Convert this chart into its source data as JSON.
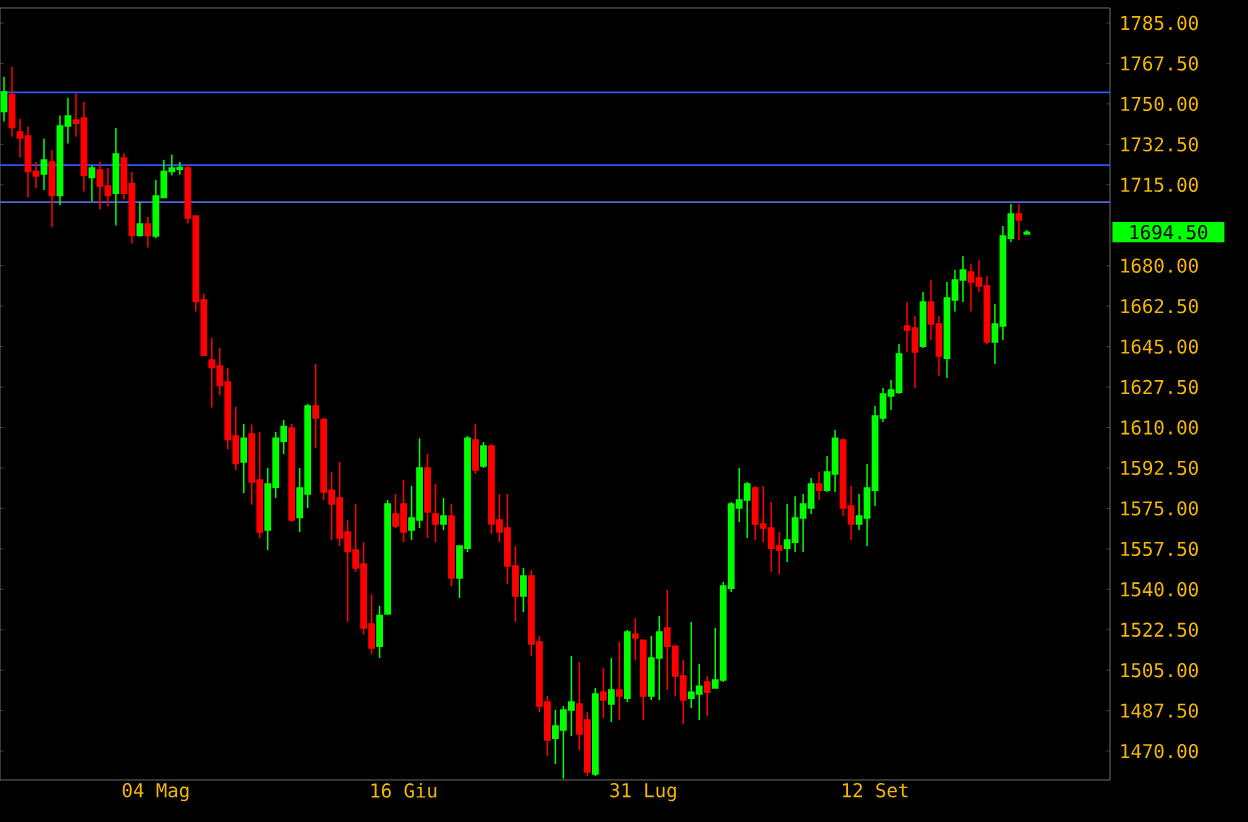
{
  "chart_data": {
    "type": "candlestick",
    "categories": [
      null,
      null,
      null,
      null,
      null,
      null,
      null,
      null,
      null,
      null,
      null,
      null,
      null,
      null,
      null,
      null,
      null,
      null,
      null,
      "04 Mag",
      null,
      null,
      null,
      null,
      null,
      null,
      null,
      null,
      null,
      null,
      null,
      null,
      null,
      null,
      null,
      null,
      null,
      null,
      null,
      null,
      null,
      null,
      null,
      null,
      null,
      null,
      null,
      null,
      null,
      null,
      "16 Giu",
      null,
      null,
      null,
      null,
      null,
      null,
      null,
      null,
      null,
      null,
      null,
      null,
      null,
      null,
      null,
      null,
      null,
      null,
      null,
      null,
      null,
      null,
      null,
      null,
      null,
      null,
      null,
      null,
      null,
      "31 Lug",
      null,
      null,
      null,
      null,
      null,
      null,
      null,
      null,
      null,
      null,
      null,
      null,
      null,
      null,
      null,
      null,
      null,
      null,
      null,
      null,
      null,
      null,
      null,
      null,
      null,
      null,
      null,
      null,
      "12 Set",
      null,
      null,
      null,
      null,
      null,
      null,
      null,
      null,
      null,
      null,
      null,
      null,
      null,
      null,
      null,
      null,
      null,
      null,
      null
    ],
    "ohlc": [
      [
        1746.7,
        1761.8,
        1742.4,
        1755.1
      ],
      [
        1754.0,
        1766.1,
        1735.8,
        1739.8
      ],
      [
        1737.8,
        1743.6,
        1726.8,
        1735.2
      ],
      [
        1736.1,
        1740.2,
        1709.5,
        1720.8
      ],
      [
        1720.8,
        1724.9,
        1713.6,
        1718.8
      ],
      [
        1719.7,
        1735.0,
        1712.7,
        1725.7
      ],
      [
        1724.9,
        1730.1,
        1696.6,
        1710.4
      ],
      [
        1710.4,
        1745.0,
        1706.1,
        1740.4
      ],
      [
        1740.4,
        1752.6,
        1732.9,
        1744.8
      ],
      [
        1743.0,
        1754.5,
        1735.8,
        1741.6
      ],
      [
        1743.9,
        1750.8,
        1712.1,
        1719.1
      ],
      [
        1718.2,
        1723.4,
        1707.8,
        1722.3
      ],
      [
        1721.4,
        1724.9,
        1704.3,
        1714.5
      ],
      [
        1714.5,
        1722.3,
        1705.6,
        1710.4
      ],
      [
        1711.3,
        1739.6,
        1697.4,
        1728.3
      ],
      [
        1726.6,
        1728.6,
        1708.7,
        1711.3
      ],
      [
        1715.6,
        1720.5,
        1689.6,
        1693.1
      ],
      [
        1693.1,
        1707.6,
        1692.6,
        1698.0
      ],
      [
        1698.0,
        1701.2,
        1687.9,
        1693.1
      ],
      [
        1692.8,
        1717.1,
        1691.9,
        1710.2
      ],
      [
        1709.5,
        1725.7,
        1709.3,
        1720.8
      ],
      [
        1720.8,
        1728.1,
        1719.1,
        1722.3
      ],
      [
        1721.7,
        1724.9,
        1719.4,
        1722.5
      ],
      [
        1722.3,
        1723.7,
        1698.3,
        1700.6
      ],
      [
        1701.5,
        1701.5,
        1660.2,
        1664.5
      ],
      [
        1665.2,
        1668.0,
        1641.2,
        1641.2
      ],
      [
        1639.2,
        1648.7,
        1618.7,
        1636.0
      ],
      [
        1636.6,
        1644.4,
        1623.9,
        1628.2
      ],
      [
        1629.7,
        1635.7,
        1600.5,
        1604.8
      ],
      [
        1606.3,
        1619.0,
        1591.6,
        1594.5
      ],
      [
        1595.1,
        1611.5,
        1581.5,
        1605.4
      ],
      [
        1607.2,
        1611.2,
        1576.6,
        1586.4
      ],
      [
        1587.3,
        1608.0,
        1562.2,
        1564.8
      ],
      [
        1565.6,
        1592.5,
        1557.0,
        1585.5
      ],
      [
        1584.1,
        1608.0,
        1579.5,
        1605.4
      ],
      [
        1604.0,
        1613.2,
        1598.5,
        1610.4
      ],
      [
        1609.8,
        1611.5,
        1569.1,
        1570.0
      ],
      [
        1571.1,
        1592.5,
        1564.8,
        1583.8
      ],
      [
        1581.2,
        1620.2,
        1575.2,
        1619.3
      ],
      [
        1619.3,
        1637.5,
        1601.1,
        1614.1
      ],
      [
        1613.5,
        1614.1,
        1578.6,
        1582.1
      ],
      [
        1582.9,
        1590.7,
        1561.3,
        1576.9
      ],
      [
        1579.5,
        1595.1,
        1558.7,
        1562.2
      ],
      [
        1564.8,
        1570.0,
        1525.8,
        1556.4
      ],
      [
        1557.0,
        1576.9,
        1547.5,
        1549.2
      ],
      [
        1550.9,
        1560.4,
        1520.6,
        1523.2
      ],
      [
        1525.0,
        1537.9,
        1512.0,
        1514.6
      ],
      [
        1515.4,
        1532.8,
        1510.3,
        1528.7
      ],
      [
        1529.3,
        1578.6,
        1529.3,
        1576.9
      ],
      [
        1572.6,
        1581.2,
        1566.5,
        1567.4
      ],
      [
        1576.9,
        1587.3,
        1560.4,
        1564.8
      ],
      [
        1565.6,
        1584.7,
        1561.3,
        1570.8
      ],
      [
        1570.0,
        1605.4,
        1566.5,
        1592.5
      ],
      [
        1592.5,
        1598.5,
        1562.2,
        1573.4
      ],
      [
        1572.6,
        1585.5,
        1560.4,
        1568.2
      ],
      [
        1568.2,
        1579.5,
        1565.6,
        1571.7
      ],
      [
        1571.7,
        1576.9,
        1541.4,
        1544.9
      ],
      [
        1544.9,
        1558.7,
        1536.2,
        1558.7
      ],
      [
        1557.8,
        1606.3,
        1556.1,
        1605.4
      ],
      [
        1604.6,
        1611.5,
        1589.9,
        1591.6
      ],
      [
        1593.3,
        1603.7,
        1592.5,
        1602.0
      ],
      [
        1602.0,
        1602.8,
        1563.9,
        1568.2
      ],
      [
        1570.0,
        1581.2,
        1560.4,
        1564.8
      ],
      [
        1566.5,
        1581.2,
        1542.3,
        1550.1
      ],
      [
        1550.1,
        1558.7,
        1525.8,
        1537.1
      ],
      [
        1537.1,
        1549.2,
        1530.2,
        1545.7
      ],
      [
        1545.7,
        1548.3,
        1511.1,
        1516.3
      ],
      [
        1517.2,
        1519.8,
        1486.9,
        1489.5
      ],
      [
        1491.2,
        1493.8,
        1467.9,
        1474.8
      ],
      [
        1475.6,
        1487.8,
        1464.4,
        1480.8
      ],
      [
        1479.1,
        1489.5,
        1458.0,
        1487.8
      ],
      [
        1487.8,
        1511.1,
        1476.5,
        1491.2
      ],
      [
        1490.4,
        1508.5,
        1470.4,
        1477.4
      ],
      [
        1483.4,
        1486.9,
        1459.2,
        1460.9
      ],
      [
        1460.1,
        1497.3,
        1459.2,
        1494.7
      ],
      [
        1495.5,
        1505.9,
        1484.3,
        1492.1
      ],
      [
        1490.4,
        1510.3,
        1482.6,
        1496.4
      ],
      [
        1496.4,
        1517.2,
        1483.4,
        1493.8
      ],
      [
        1492.9,
        1522.4,
        1491.2,
        1521.5
      ],
      [
        1520.6,
        1527.6,
        1509.4,
        1518.9
      ],
      [
        1518.0,
        1518.0,
        1483.4,
        1493.8
      ],
      [
        1493.8,
        1519.8,
        1492.1,
        1510.3
      ],
      [
        1510.3,
        1528.4,
        1492.1,
        1521.5
      ],
      [
        1523.2,
        1539.7,
        1496.4,
        1515.4
      ],
      [
        1515.4,
        1515.4,
        1493.8,
        1502.5
      ],
      [
        1502.5,
        1509.4,
        1481.7,
        1492.1
      ],
      [
        1492.9,
        1525.8,
        1488.6,
        1495.5
      ],
      [
        1494.7,
        1507.7,
        1483.4,
        1498.1
      ],
      [
        1499.9,
        1502.5,
        1485.2,
        1495.5
      ],
      [
        1497.3,
        1523.2,
        1497.3,
        1500.7
      ],
      [
        1500.7,
        1543.1,
        1499.9,
        1541.4
      ],
      [
        1540.5,
        1577.8,
        1538.8,
        1576.9
      ],
      [
        1575.2,
        1592.5,
        1569.1,
        1578.6
      ],
      [
        1578.6,
        1586.4,
        1562.2,
        1585.5
      ],
      [
        1583.8,
        1584.7,
        1561.3,
        1568.2
      ],
      [
        1568.2,
        1584.7,
        1560.4,
        1566.5
      ],
      [
        1566.5,
        1577.8,
        1547.5,
        1557.8
      ],
      [
        1558.7,
        1564.8,
        1546.6,
        1557.0
      ],
      [
        1557.8,
        1576.9,
        1551.8,
        1561.3
      ],
      [
        1560.4,
        1580.3,
        1556.1,
        1570.8
      ],
      [
        1570.8,
        1581.2,
        1556.1,
        1576.9
      ],
      [
        1575.2,
        1588.1,
        1572.6,
        1585.5
      ],
      [
        1585.5,
        1590.7,
        1578.6,
        1582.9
      ],
      [
        1582.9,
        1597.7,
        1582.1,
        1590.7
      ],
      [
        1589.9,
        1608.9,
        1582.1,
        1605.4
      ],
      [
        1604.6,
        1605.4,
        1571.7,
        1575.2
      ],
      [
        1576.0,
        1584.7,
        1561.3,
        1568.2
      ],
      [
        1568.2,
        1581.2,
        1565.6,
        1571.7
      ],
      [
        1570.8,
        1594.2,
        1558.7,
        1583.8
      ],
      [
        1582.9,
        1619.3,
        1576.0,
        1615.0
      ],
      [
        1614.1,
        1627.1,
        1612.4,
        1624.5
      ],
      [
        1623.6,
        1630.5,
        1617.6,
        1626.2
      ],
      [
        1625.3,
        1646.1,
        1624.5,
        1641.8
      ],
      [
        1653.9,
        1664.3,
        1642.7,
        1652.2
      ],
      [
        1653.0,
        1658.2,
        1627.1,
        1642.7
      ],
      [
        1645.2,
        1668.6,
        1644.4,
        1664.3
      ],
      [
        1664.3,
        1673.8,
        1647.8,
        1654.8
      ],
      [
        1654.8,
        1658.2,
        1632.3,
        1640.9
      ],
      [
        1640.0,
        1672.9,
        1631.4,
        1666.0
      ],
      [
        1665.2,
        1678.1,
        1660.2,
        1673.8
      ],
      [
        1673.8,
        1684.2,
        1664.3,
        1678.1
      ],
      [
        1677.3,
        1680.7,
        1660.2,
        1672.9
      ],
      [
        1674.7,
        1682.5,
        1668.6,
        1671.2
      ],
      [
        1671.2,
        1675.5,
        1646.1,
        1647.0
      ],
      [
        1647.0,
        1663.4,
        1637.5,
        1654.8
      ],
      [
        1653.9,
        1697.2,
        1647.8,
        1692.8
      ],
      [
        1691.9,
        1706.7,
        1690.2,
        1702.4
      ],
      [
        1702.4,
        1706.7,
        1691.1,
        1699.8
      ],
      [
        1693.7,
        1695.4,
        1693.7,
        1694.5
      ]
    ],
    "colors": [
      "#00ff00",
      "#ff0000",
      "#ff0000",
      "#ff0000",
      "#ff0000",
      "#00ff00",
      "#ff0000",
      "#00ff00",
      "#00ff00",
      "#ff0000",
      "#ff0000",
      "#00ff00",
      "#ff0000",
      "#ff0000",
      "#00ff00",
      "#ff0000",
      "#ff0000",
      "#00ff00",
      "#ff0000",
      "#00ff00",
      "#00ff00",
      "#00ff00",
      "#00ff00",
      "#ff0000",
      "#ff0000",
      "#ff0000",
      "#ff0000",
      "#ff0000",
      "#ff0000",
      "#ff0000",
      "#00ff00",
      "#ff0000",
      "#ff0000",
      "#00ff00",
      "#00ff00",
      "#00ff00",
      "#ff0000",
      "#00ff00",
      "#00ff00",
      "#ff0000",
      "#ff0000",
      "#ff0000",
      "#ff0000",
      "#ff0000",
      "#ff0000",
      "#ff0000",
      "#ff0000",
      "#00ff00",
      "#00ff00",
      "#ff0000",
      "#ff0000",
      "#00ff00",
      "#00ff00",
      "#ff0000",
      "#ff0000",
      "#00ff00",
      "#ff0000",
      "#00ff00",
      "#00ff00",
      "#ff0000",
      "#00ff00",
      "#ff0000",
      "#ff0000",
      "#ff0000",
      "#ff0000",
      "#00ff00",
      "#ff0000",
      "#ff0000",
      "#ff0000",
      "#00ff00",
      "#00ff00",
      "#00ff00",
      "#ff0000",
      "#ff0000",
      "#00ff00",
      "#ff0000",
      "#00ff00",
      "#ff0000",
      "#00ff00",
      "#ff0000",
      "#ff0000",
      "#00ff00",
      "#00ff00",
      "#ff0000",
      "#ff0000",
      "#ff0000",
      "#00ff00",
      "#00ff00",
      "#ff0000",
      "#00ff00",
      "#00ff00",
      "#00ff00",
      "#00ff00",
      "#00ff00",
      "#ff0000",
      "#ff0000",
      "#ff0000",
      "#ff0000",
      "#00ff00",
      "#00ff00",
      "#00ff00",
      "#00ff00",
      "#ff0000",
      "#00ff00",
      "#00ff00",
      "#ff0000",
      "#ff0000",
      "#00ff00",
      "#00ff00",
      "#00ff00",
      "#00ff00",
      "#00ff00",
      "#00ff00",
      "#ff0000",
      "#ff0000",
      "#00ff00",
      "#ff0000",
      "#ff0000",
      "#00ff00",
      "#00ff00",
      "#00ff00",
      "#ff0000",
      "#ff0000",
      "#ff0000",
      "#00ff00",
      "#00ff00",
      "#00ff00",
      "#ff0000",
      "#00ff00"
    ],
    "ylim": [
      1457.5,
      1791.5
    ],
    "yticks": [
      {
        "value": 1470,
        "label": "1470.00"
      },
      {
        "value": 1487.5,
        "label": "1487.50"
      },
      {
        "value": 1505,
        "label": "1505.00"
      },
      {
        "value": 1522.5,
        "label": "1522.50"
      },
      {
        "value": 1540,
        "label": "1540.00"
      },
      {
        "value": 1557.5,
        "label": "1557.50"
      },
      {
        "value": 1575,
        "label": "1575.00"
      },
      {
        "value": 1592.5,
        "label": "1592.50"
      },
      {
        "value": 1610,
        "label": "1610.00"
      },
      {
        "value": 1627.5,
        "label": "1627.50"
      },
      {
        "value": 1645,
        "label": "1645.00"
      },
      {
        "value": 1662.5,
        "label": "1662.50"
      },
      {
        "value": 1680,
        "label": "1680.00"
      },
      {
        "value": 1715,
        "label": "1715.00"
      },
      {
        "value": 1732.5,
        "label": "1732.50"
      },
      {
        "value": 1750,
        "label": "1750.00"
      },
      {
        "value": 1767.5,
        "label": "1767.50"
      },
      {
        "value": 1785,
        "label": "1785.00"
      }
    ],
    "ref_lines": [
      {
        "axis": "y",
        "value": 1755,
        "color": "#3355ff"
      },
      {
        "axis": "y",
        "value": 1723.5,
        "color": "#3355ff"
      },
      {
        "axis": "y",
        "value": 1707.5,
        "color": "#5566dd"
      }
    ],
    "annotations": [
      "1694.50"
    ]
  }
}
